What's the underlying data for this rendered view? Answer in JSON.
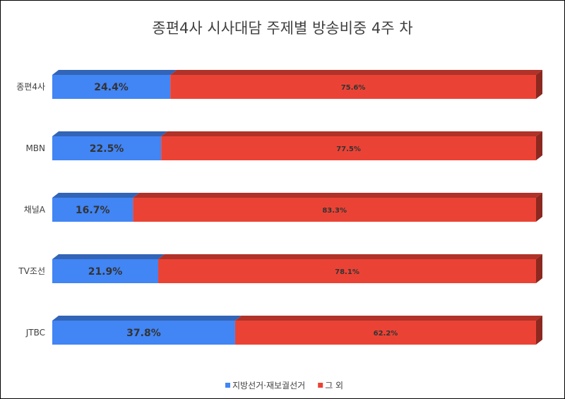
{
  "chart_data": {
    "type": "bar",
    "orientation": "horizontal",
    "stacked": true,
    "percent": true,
    "style": "3d",
    "title": "종편4사 시사대담 주제별 방송비중 4주 차",
    "categories": [
      "종편4사",
      "MBN",
      "채널A",
      "TV조선",
      "JTBC"
    ],
    "series": [
      {
        "name": "지방선거·재보궐선거",
        "color": "#4285f4",
        "values": [
          24.4,
          22.5,
          16.7,
          21.9,
          37.8
        ],
        "labels": [
          "24.4%",
          "22.5%",
          "16.7%",
          "21.9%",
          "37.8%"
        ]
      },
      {
        "name": "그 외",
        "color": "#ea4335",
        "values": [
          75.6,
          77.5,
          83.3,
          78.1,
          62.2
        ],
        "labels": [
          "75.6%",
          "77.5%",
          "83.3%",
          "78.1%",
          "62.2%"
        ]
      }
    ],
    "xlim": [
      0,
      100
    ],
    "grid": false,
    "legend_position": "bottom"
  }
}
